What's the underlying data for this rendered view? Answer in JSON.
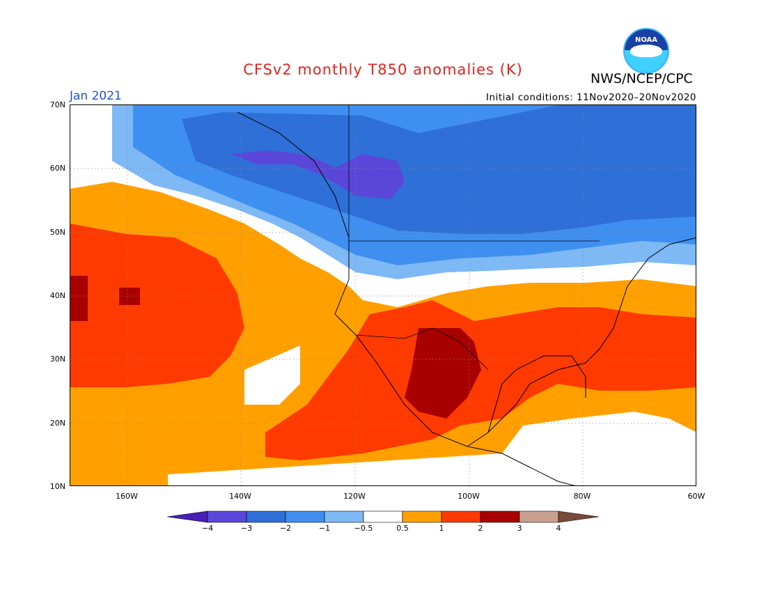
{
  "header": {
    "title": "CFSv2 monthly T850 anomalies (K)",
    "agency": "NWS/NCEP/CPC",
    "logo_text": "NOAA",
    "month": "Jan 2021",
    "initial_conditions": "Initial conditions: 11Nov2020–20Nov2020"
  },
  "map": {
    "projection": "latitude-longitude",
    "lat_range": [
      10,
      70
    ],
    "lon_range": [
      "170W",
      "60W"
    ],
    "lat_labels": [
      "70N",
      "60N",
      "50N",
      "40N",
      "30N",
      "20N",
      "10N"
    ],
    "lon_labels": [
      "160W",
      "140W",
      "120W",
      "100W",
      "80W",
      "60W"
    ],
    "grid": "dotted"
  },
  "colorbar": {
    "labels": [
      "−4",
      "−3",
      "−2",
      "−1",
      "−0.5",
      "0.5",
      "1",
      "2",
      "3",
      "4"
    ],
    "colors": [
      "#4a1fb8",
      "#5a47d9",
      "#2f6fd8",
      "#3f8ff0",
      "#7eb8f5",
      "#ffffff",
      "#ffa000",
      "#ff3a00",
      "#a80000",
      "#c9a08f",
      "#7a4a3a"
    ]
  }
}
